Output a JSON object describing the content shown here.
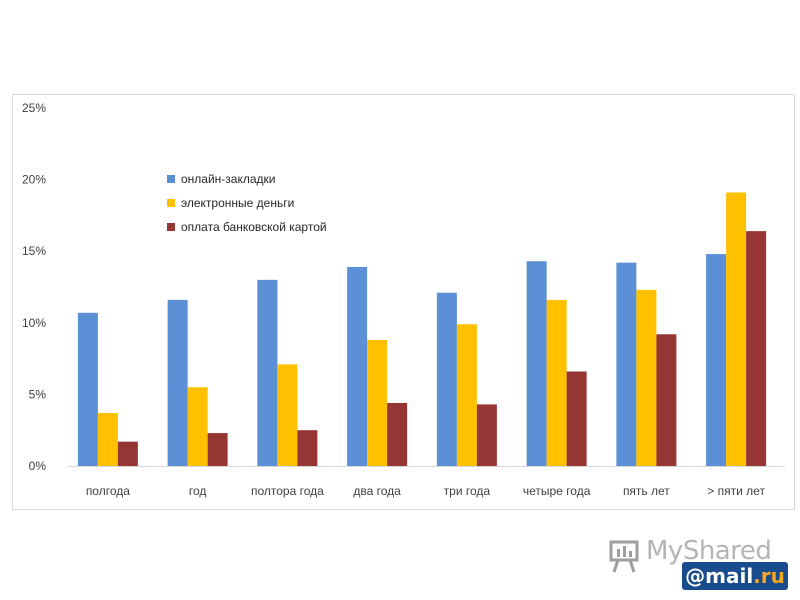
{
  "chart_data": {
    "type": "bar",
    "title": "",
    "xlabel": "",
    "ylabel": "",
    "categories": [
      "полгода",
      "год",
      "полтора года",
      "два года",
      "три года",
      "четыре года",
      "пять лет",
      "> пяти лет"
    ],
    "series": [
      {
        "name": "онлайн-закладки",
        "color": "#5b8fd6",
        "values": [
          10.7,
          11.6,
          13.0,
          13.9,
          12.1,
          14.3,
          14.2,
          14.8
        ]
      },
      {
        "name": "электронные деньги",
        "color": "#ffc000",
        "values": [
          3.7,
          5.5,
          7.1,
          8.8,
          9.9,
          11.6,
          12.3,
          19.1
        ]
      },
      {
        "name": "оплата банковской картой",
        "color": "#963634",
        "values": [
          1.7,
          2.3,
          2.5,
          4.4,
          4.3,
          6.6,
          9.2,
          16.4
        ]
      }
    ],
    "yticks": [
      "0%",
      "5%",
      "10%",
      "15%",
      "20%",
      "25%"
    ],
    "ylim": [
      0,
      25
    ],
    "legend_position": "top-left",
    "grid": false
  },
  "watermark": {
    "brand": "MyShared",
    "partner_prefix": "@mail",
    "partner_suffix": ".ru",
    "icon": "presentation-board-icon"
  }
}
